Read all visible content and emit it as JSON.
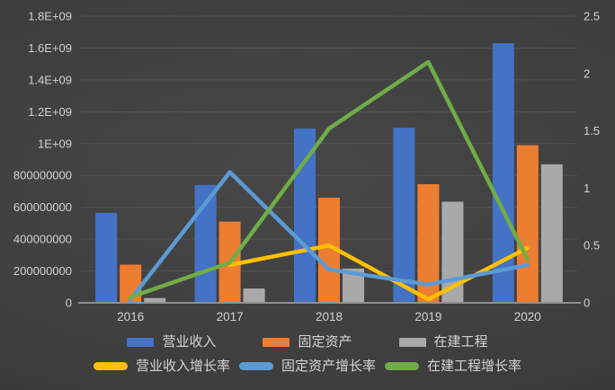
{
  "chart_data": {
    "type": "combo-bar-line",
    "categories": [
      "2016",
      "2017",
      "2018",
      "2019",
      "2020"
    ],
    "bar_series": [
      {
        "name": "营业收入",
        "color": "#4472C4",
        "values": [
          565000000,
          740000000,
          1095000000,
          1100000000,
          1630000000
        ]
      },
      {
        "name": "固定资产",
        "color": "#ED7D31",
        "values": [
          240000000,
          510000000,
          660000000,
          745000000,
          990000000
        ]
      },
      {
        "name": "在建工程",
        "color": "#A9A9A9",
        "values": [
          30000000,
          90000000,
          215000000,
          635000000,
          870000000
        ]
      }
    ],
    "line_series": [
      {
        "name": "营业收入增长率",
        "color": "#FFC000",
        "values": [
          null,
          0.33,
          0.5,
          0.03,
          0.48
        ]
      },
      {
        "name": "固定资产增长率",
        "color": "#5B9BD5",
        "values": [
          0.03,
          1.14,
          0.29,
          0.16,
          0.33
        ]
      },
      {
        "name": "在建工程增长率",
        "color": "#70AD47",
        "values": [
          0.05,
          0.35,
          1.52,
          2.1,
          0.38
        ]
      }
    ],
    "left_axis": {
      "min": 0,
      "max": 1800000000,
      "step": 200000000,
      "ticks": [
        "0",
        "200000000",
        "400000000",
        "600000000",
        "800000000",
        "1E+09",
        "1.2E+09",
        "1.4E+09",
        "1.6E+09",
        "1.8E+09"
      ]
    },
    "right_axis": {
      "min": 0,
      "max": 2.5,
      "step": 0.5,
      "ticks": [
        "0",
        "0.5",
        "1",
        "1.5",
        "2",
        "2.5"
      ]
    },
    "grid": true,
    "legend_position": "bottom"
  }
}
